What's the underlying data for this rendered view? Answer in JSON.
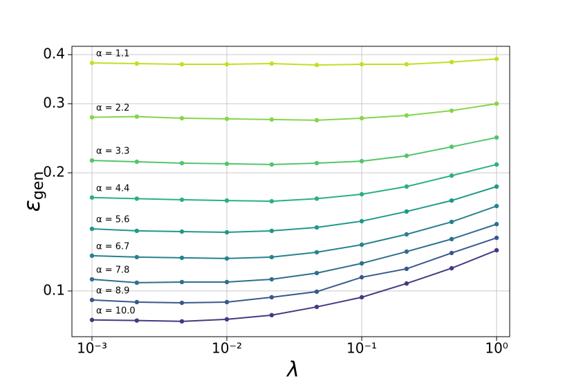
{
  "chart_data": {
    "type": "line",
    "x_log": true,
    "y_log": true,
    "grid": true,
    "x_label": "λ",
    "y_label": {
      "symbol": "ε",
      "subscript": "gen"
    },
    "x": [
      0.001,
      0.00215,
      0.00464,
      0.01,
      0.0215,
      0.0464,
      0.1,
      0.215,
      0.464,
      1
    ],
    "xlim": [
      0.00071,
      1.25
    ],
    "xticks": [
      {
        "value": 0.001,
        "label": "10⁻³"
      },
      {
        "value": 0.01,
        "label": "10⁻²"
      },
      {
        "value": 0.1,
        "label": "10⁻¹"
      },
      {
        "value": 1,
        "label": "10⁰"
      }
    ],
    "ylim": [
      0.0765,
      0.42
    ],
    "yticks": [
      0.1,
      0.2,
      0.3,
      0.4
    ],
    "series": [
      {
        "name": "α = 1.1",
        "color": "#c2df23",
        "values": [
          0.381,
          0.3795,
          0.378,
          0.378,
          0.3795,
          0.3765,
          0.378,
          0.378,
          0.383,
          0.39
        ]
      },
      {
        "name": "α = 2.2",
        "color": "#86d549",
        "values": [
          0.277,
          0.2781,
          0.2755,
          0.2745,
          0.2734,
          0.2723,
          0.2755,
          0.28,
          0.288,
          0.3
        ]
      },
      {
        "name": "α = 3.3",
        "color": "#52c569",
        "values": [
          0.215,
          0.2134,
          0.2117,
          0.2109,
          0.21,
          0.2117,
          0.2142,
          0.221,
          0.233,
          0.246
        ]
      },
      {
        "name": "α = 4.4",
        "color": "#2ab07f",
        "values": [
          0.173,
          0.1719,
          0.1708,
          0.17,
          0.1693,
          0.1719,
          0.1764,
          0.1845,
          0.1967,
          0.21
        ]
      },
      {
        "name": "α = 5.6",
        "color": "#1f988b",
        "values": [
          0.144,
          0.1423,
          0.1417,
          0.1411,
          0.1423,
          0.1452,
          0.1506,
          0.1594,
          0.17,
          0.1845
        ]
      },
      {
        "name": "α = 6.7",
        "color": "#26828e",
        "values": [
          0.123,
          0.122,
          0.1215,
          0.121,
          0.122,
          0.1255,
          0.1312,
          0.1394,
          0.15,
          0.1646
        ]
      },
      {
        "name": "α = 7.8",
        "color": "#2e6e8e",
        "values": [
          0.1071,
          0.105,
          0.1054,
          0.1054,
          0.1071,
          0.1111,
          0.1176,
          0.126,
          0.1356,
          0.148
        ]
      },
      {
        "name": "α = 8.9",
        "color": "#38588c",
        "values": [
          0.0949,
          0.0937,
          0.0933,
          0.0937,
          0.0964,
          0.0996,
          0.1084,
          0.1139,
          0.125,
          0.1366
        ]
      },
      {
        "name": "α = 10.0",
        "color": "#443983",
        "values": [
          0.0844,
          0.0841,
          0.0837,
          0.0847,
          0.0868,
          0.0911,
          0.0964,
          0.1045,
          0.1143,
          0.127
        ]
      }
    ]
  }
}
